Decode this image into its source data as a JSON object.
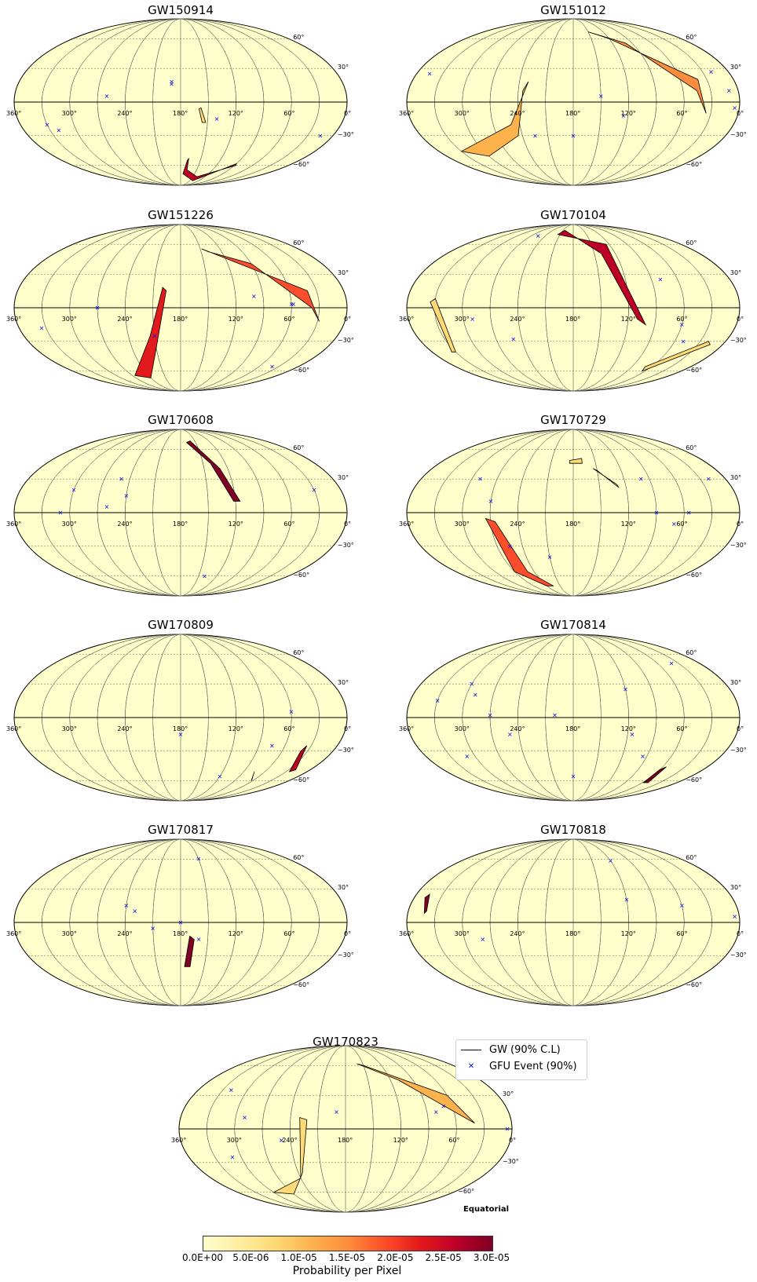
{
  "panels": [
    {
      "title": "GW150914"
    },
    {
      "title": "GW151012"
    },
    {
      "title": "GW151226"
    },
    {
      "title": "GW170104"
    },
    {
      "title": "GW170608"
    },
    {
      "title": "GW170729"
    },
    {
      "title": "GW170809"
    },
    {
      "title": "GW170814"
    },
    {
      "title": "GW170817"
    },
    {
      "title": "GW170818"
    },
    {
      "title": "GW170823"
    }
  ],
  "axis_labels": {
    "lon_ticks": [
      "360°",
      "300°",
      "240°",
      "180°",
      "120°",
      "60°",
      "0°"
    ],
    "lat_ticks": [
      "60°",
      "30°",
      "0°",
      "−30°",
      "−60°"
    ]
  },
  "legend": {
    "gw_label": "GW (90% C.L)",
    "gfu_label": "GFU Event (90%)"
  },
  "projection_label": "Equatorial",
  "colorbar": {
    "ticks": [
      "0.0E+00",
      "5.0E-06",
      "1.0E-05",
      "1.5E-05",
      "2.0E-05",
      "2.5E-05",
      "3.0E-05"
    ],
    "label": "Probability per Pixel",
    "colors": [
      "#ffffcc",
      "#ffeda0",
      "#fed976",
      "#feb24c",
      "#fd8d3c",
      "#fc4e2a",
      "#e31a1c",
      "#bd0026",
      "#800026"
    ]
  },
  "colors": {
    "map_background": "#ffffcc",
    "gfu_marker": "#1010e0",
    "contour": "#000000",
    "grid": "#555555"
  }
}
